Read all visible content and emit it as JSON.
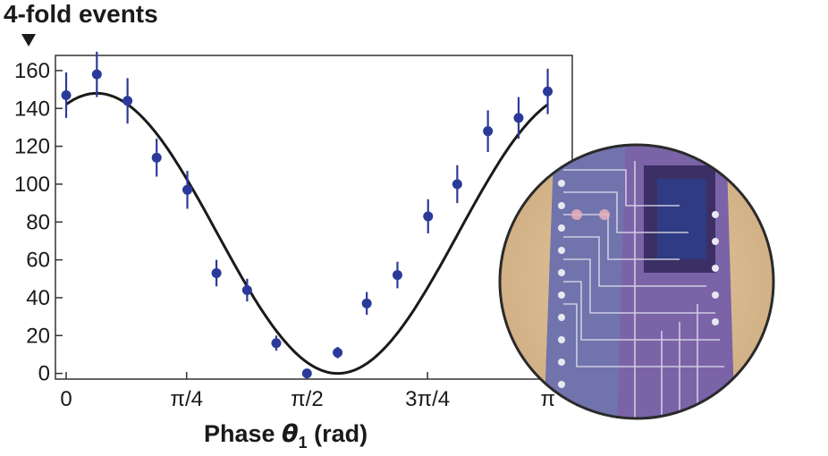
{
  "chart_data": {
    "type": "scatter",
    "ylabel": "4-fold events",
    "xlabel": {
      "prefix": "Phase ",
      "symbol": "θ",
      "subscript": "1",
      "suffix": " (rad)"
    },
    "xlim": [
      -0.07,
      3.3
    ],
    "ylim": [
      -3,
      168
    ],
    "yticks": [
      0,
      20,
      40,
      60,
      80,
      100,
      120,
      140,
      160
    ],
    "xticks": [
      {
        "value": 0,
        "label": "0"
      },
      {
        "value": 0.7854,
        "label": "π/4"
      },
      {
        "value": 1.5708,
        "label": "π/2"
      },
      {
        "value": 2.3562,
        "label": "3π/4"
      },
      {
        "value": 3.1416,
        "label": "π"
      }
    ],
    "series": [
      {
        "points": [
          {
            "x": 0.0,
            "y": 147,
            "err": 12
          },
          {
            "x": 0.2,
            "y": 158,
            "err": 12
          },
          {
            "x": 0.4,
            "y": 144,
            "err": 12
          },
          {
            "x": 0.59,
            "y": 114,
            "err": 10
          },
          {
            "x": 0.79,
            "y": 97,
            "err": 10
          },
          {
            "x": 0.98,
            "y": 53,
            "err": 7
          },
          {
            "x": 1.18,
            "y": 44,
            "err": 6
          },
          {
            "x": 1.37,
            "y": 16,
            "err": 4
          },
          {
            "x": 1.57,
            "y": 0,
            "err": 2
          },
          {
            "x": 1.77,
            "y": 11,
            "err": 3
          },
          {
            "x": 1.96,
            "y": 37,
            "err": 6
          },
          {
            "x": 2.16,
            "y": 52,
            "err": 7
          },
          {
            "x": 2.36,
            "y": 83,
            "err": 9
          },
          {
            "x": 2.55,
            "y": 100,
            "err": 10
          },
          {
            "x": 2.75,
            "y": 128,
            "err": 11
          },
          {
            "x": 2.95,
            "y": 135,
            "err": 11
          },
          {
            "x": 3.14,
            "y": 149,
            "err": 12
          }
        ]
      }
    ],
    "fit": {
      "amplitude": 148,
      "peak_at": 0.2,
      "period": 3.14159
    },
    "colors": {
      "points": "#2b3a9a",
      "fit": "#1a1a1a",
      "axes": "#333333"
    },
    "grid": false,
    "legend": "none"
  },
  "inset": {
    "description_icon": "photonic-chip-photo"
  }
}
